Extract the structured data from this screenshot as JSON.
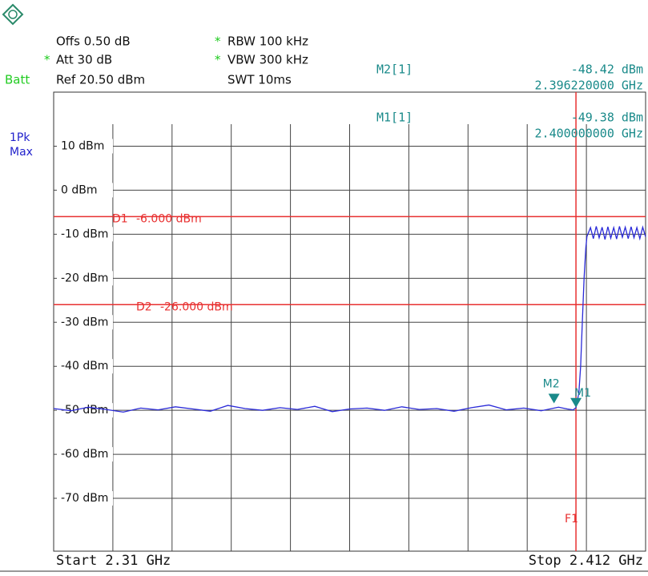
{
  "header": {
    "offs": "Offs 0.50 dB",
    "att": "Att 30 dB",
    "ref": "Ref 20.50 dBm",
    "rbw": "RBW 100 kHz",
    "vbw": "VBW 300 kHz",
    "swt": "SWT 10ms",
    "batt": "Batt",
    "flags": [
      "*",
      "*",
      "*"
    ],
    "trace_mode": [
      "1Pk",
      "Max"
    ]
  },
  "chart_data": {
    "type": "line",
    "start_label": "Start 2.31 GHz",
    "stop_label": "Stop 2.412 GHz",
    "xlim": [
      2.31,
      2.412
    ],
    "xticks": [
      2.3202,
      2.3304,
      2.3406,
      2.3508,
      2.361,
      2.3712,
      2.3814,
      2.3916,
      2.4018
    ],
    "ylim": [
      -82,
      15
    ],
    "yticks": [
      {
        "value": 10,
        "label": "10 dBm"
      },
      {
        "value": 0,
        "label": "0 dBm"
      },
      {
        "value": -10,
        "label": "-10 dBm"
      },
      {
        "value": -20,
        "label": "-20 dBm"
      },
      {
        "value": -30,
        "label": "-30 dBm"
      },
      {
        "value": -40,
        "label": "-40 dBm"
      },
      {
        "value": -50,
        "label": "-50 dBm"
      },
      {
        "value": -60,
        "label": "-60 dBm"
      },
      {
        "value": -70,
        "label": "-70 dBm"
      }
    ],
    "grid": true,
    "series": [
      {
        "name": "1",
        "color": "#2a2ad8",
        "x": [
          2.31,
          2.313,
          2.316,
          2.319,
          2.322,
          2.325,
          2.328,
          2.331,
          2.334,
          2.337,
          2.34,
          2.343,
          2.346,
          2.349,
          2.352,
          2.355,
          2.358,
          2.361,
          2.364,
          2.367,
          2.37,
          2.373,
          2.376,
          2.379,
          2.382,
          2.385,
          2.388,
          2.391,
          2.394,
          2.397,
          2.3985,
          2.3995,
          2.4,
          2.4005,
          2.4008,
          2.4011,
          2.4014,
          2.4017,
          2.4019,
          2.4025,
          2.403,
          2.4035,
          2.404,
          2.4045,
          2.405,
          2.4055,
          2.406,
          2.4065,
          2.407,
          2.4075,
          2.408,
          2.4085,
          2.409,
          2.4095,
          2.41,
          2.4105,
          2.411,
          2.4115,
          2.412
        ],
        "values": [
          -49.6,
          -50.1,
          -49.3,
          -49.8,
          -50.4,
          -49.5,
          -49.9,
          -49.2,
          -49.7,
          -50.2,
          -48.9,
          -49.6,
          -50.0,
          -49.4,
          -49.8,
          -49.1,
          -50.3,
          -49.7,
          -49.5,
          -50.0,
          -49.2,
          -49.8,
          -49.6,
          -50.2,
          -49.4,
          -48.8,
          -49.9,
          -49.5,
          -50.1,
          -49.3,
          -49.7,
          -49.9,
          -49.4,
          -46.0,
          -40.0,
          -30.0,
          -20.0,
          -13.0,
          -10.5,
          -8.5,
          -11.0,
          -8.2,
          -10.8,
          -8.4,
          -11.2,
          -8.3,
          -10.9,
          -8.5,
          -11.1,
          -8.2,
          -10.7,
          -8.4,
          -11.0,
          -8.3,
          -10.8,
          -8.5,
          -11.0,
          -8.4,
          -10.6
        ]
      }
    ],
    "display_lines": [
      {
        "name": "D1",
        "value": -6,
        "label": "-6.000 dBm",
        "color": "#e83030"
      },
      {
        "name": "D2",
        "value": -26,
        "label": "-26.000 dBm",
        "color": "#e83030"
      }
    ],
    "frequency_lines": [
      {
        "name": "F1",
        "value": 2.4,
        "color": "#e83030"
      }
    ],
    "markers": [
      {
        "name": "M2",
        "label": "M2[1]",
        "x": 2.39622,
        "y": -48.42,
        "value_label": "-48.42 dBm",
        "x_label": "2.396220000 GHz",
        "color": "#1a8a8a"
      },
      {
        "name": "M1",
        "label": "M1[1]",
        "x": 2.4,
        "y": -49.38,
        "value_label": "-49.38 dBm",
        "x_label": "2.400000000 GHz",
        "color": "#1a8a8a"
      }
    ]
  }
}
